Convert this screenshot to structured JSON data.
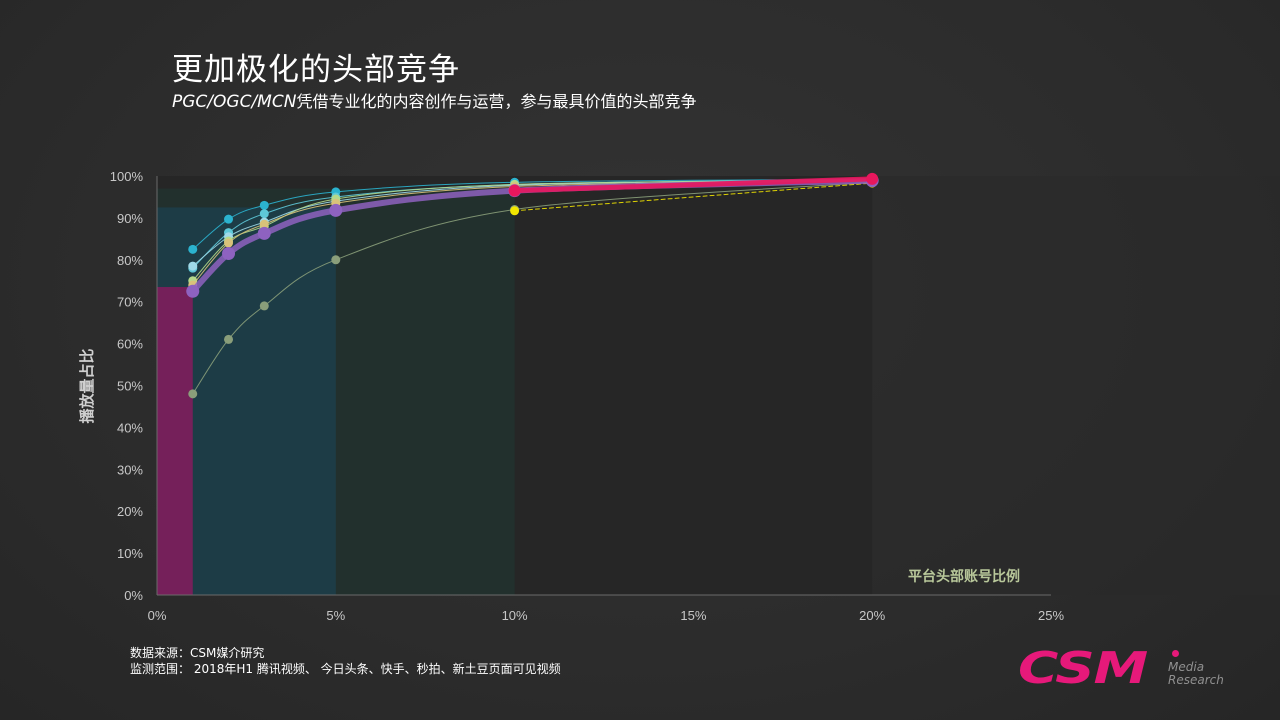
{
  "header": {
    "title": "更加极化的头部竞争",
    "subtitle_em": "PGC/OGC/MCN",
    "subtitle_rest": "凭借专业化的内容创作与运营，参与最具价值的头部竞争"
  },
  "footer": {
    "source_line": "数据来源：CSM媒介研究",
    "scope_line": "监测范围： 2018年H1 腾讯视频、 今日头条、快手、秒拍、新土豆页面可见视频"
  },
  "logo": {
    "main": "CSM",
    "sub1": "Media",
    "sub2": "Research"
  },
  "chart_data": {
    "type": "line",
    "title": "",
    "xlabel": "平台头部账号比例",
    "ylabel": "播放量占比",
    "xlim": [
      0,
      25
    ],
    "ylim": [
      0,
      100
    ],
    "x_ticks": [
      "0%",
      "5%",
      "10%",
      "15%",
      "20%",
      "25%"
    ],
    "y_ticks": [
      "0%",
      "10%",
      "20%",
      "30%",
      "40%",
      "50%",
      "60%",
      "70%",
      "80%",
      "90%",
      "100%"
    ],
    "grid": false,
    "legend": "none",
    "x": [
      1,
      2,
      3,
      5,
      10,
      20
    ],
    "series": [
      {
        "color": "#2bb3cf",
        "values": [
          82.5,
          89.7,
          93,
          96.2,
          98.5,
          99.2
        ]
      },
      {
        "color": "#5ec8d8",
        "values": [
          78,
          86.5,
          91,
          95,
          98,
          99.2
        ]
      },
      {
        "color": "#9fd9e8",
        "values": [
          78.5,
          85.5,
          89,
          94,
          97.8,
          99.1
        ]
      },
      {
        "color": "#b5d98a",
        "values": [
          75,
          84.5,
          88,
          94.5,
          98,
          99
        ]
      },
      {
        "color": "#d9c27a",
        "values": [
          74,
          84,
          88.5,
          93.5,
          97.5,
          98.8
        ]
      },
      {
        "color": "#8a9e7a",
        "values": [
          48,
          61,
          69,
          80,
          92,
          98.5
        ]
      },
      {
        "color": "#f2e600",
        "values": [
          null,
          null,
          null,
          null,
          91.7,
          98.3
        ]
      },
      {
        "color": "#8e62c0",
        "values": [
          72.5,
          81.5,
          86.3,
          91.8,
          96.5,
          98.9
        ]
      },
      {
        "color": "#e8175d",
        "values": [
          null,
          null,
          null,
          null,
          96.5,
          99.3
        ]
      }
    ],
    "highlight_bands": [
      {
        "x_to": 1,
        "y": 73.5,
        "color": "#7a1f5c"
      },
      {
        "x_to": 5,
        "y": 92.5,
        "color": "#1e3d48"
      },
      {
        "x_to": 10,
        "y": 97,
        "color": "#22302d"
      },
      {
        "x_to": 20,
        "y": 100,
        "color": "#262626"
      }
    ]
  }
}
